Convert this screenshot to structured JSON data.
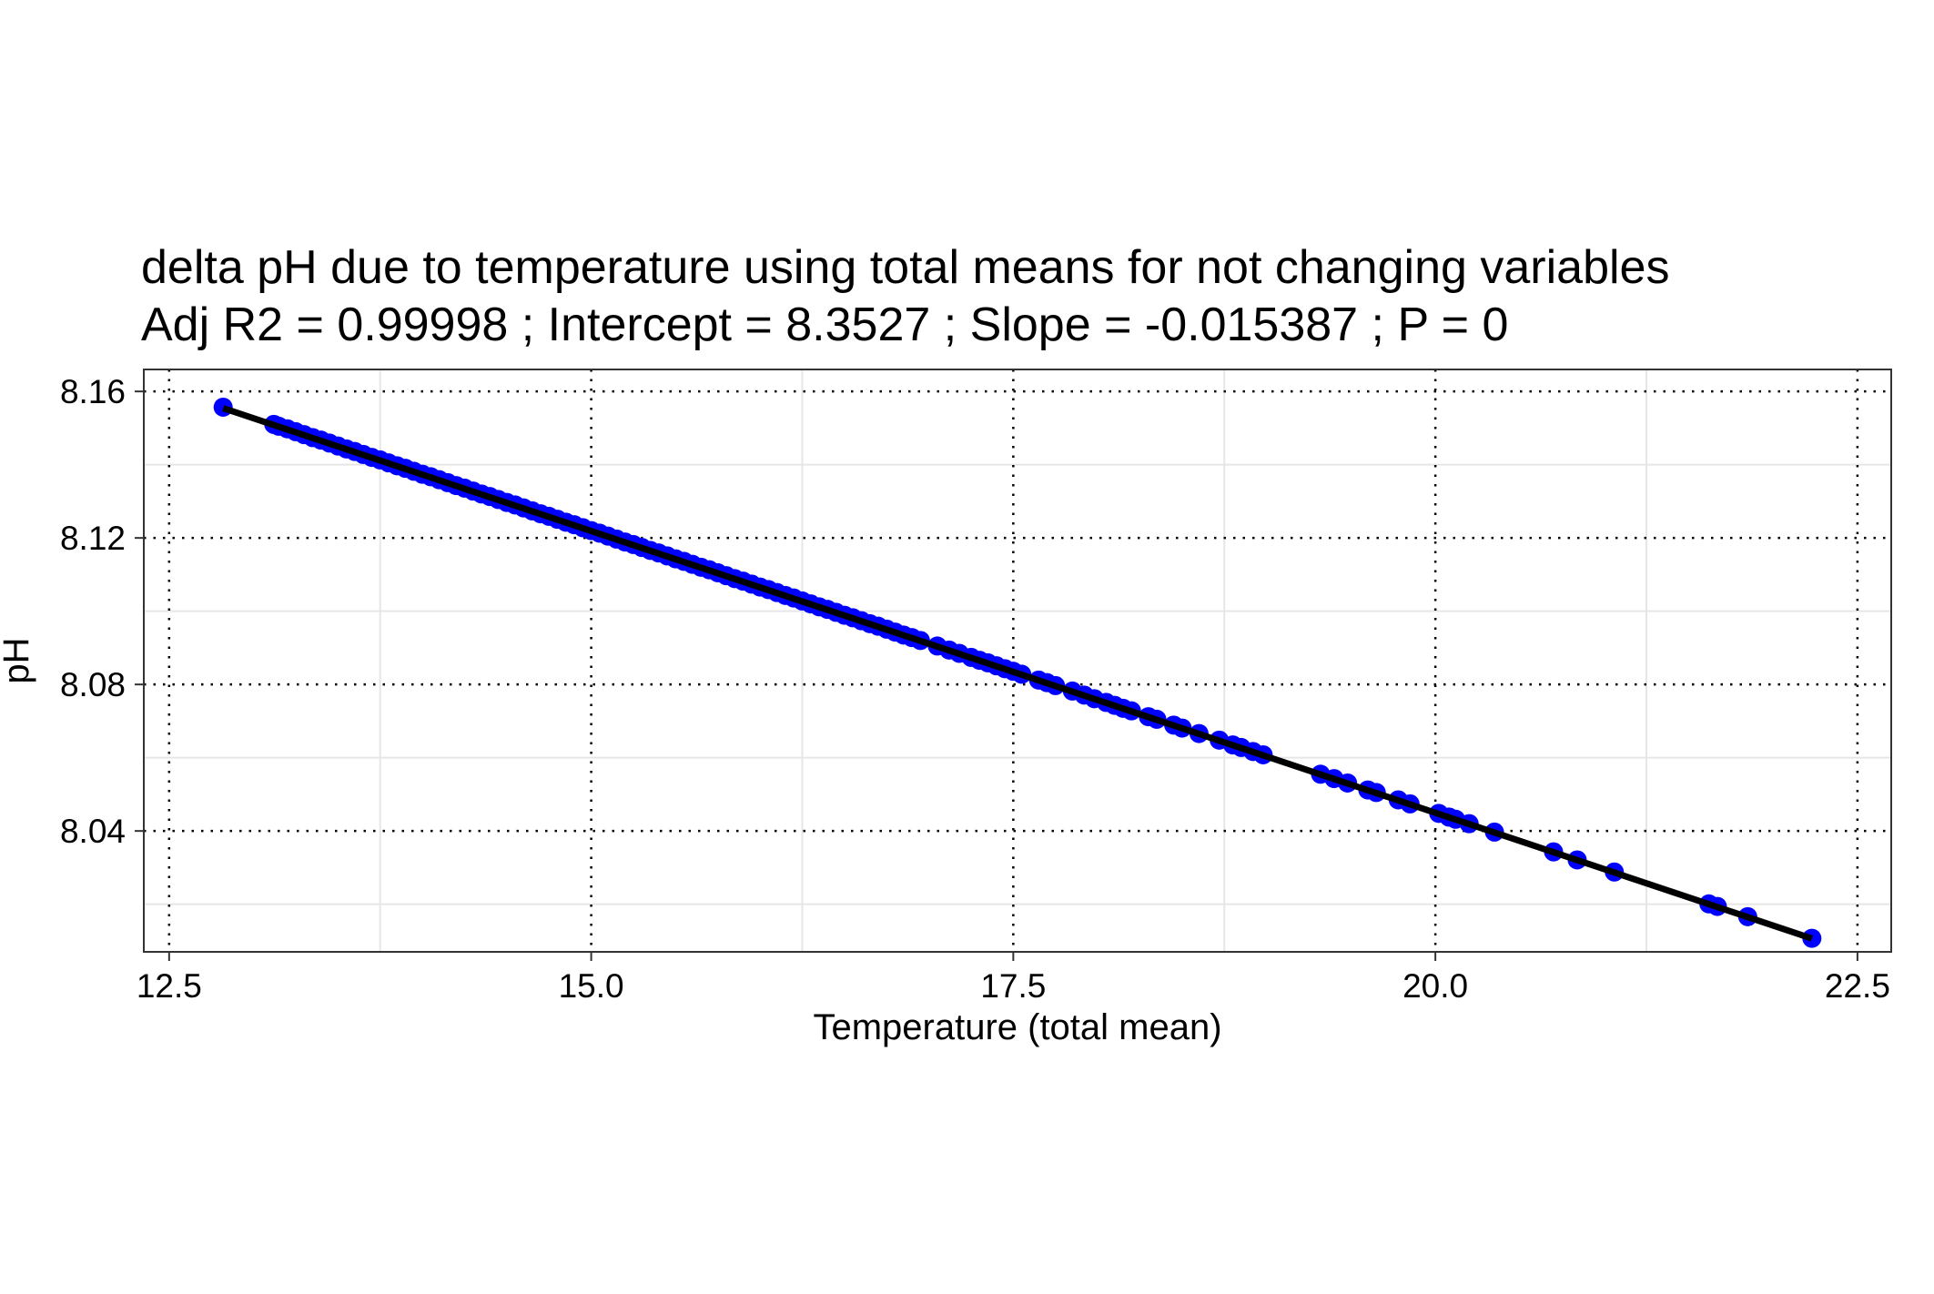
{
  "chart_data": {
    "type": "scatter",
    "title": "delta pH due to temperature using total means for not changing variables",
    "subtitle": "Adj R2 =  0.99998 ; Intercept = 8.3527 ; Slope = -0.015387 ; P = 0",
    "xlabel": "Temperature (total mean)",
    "ylabel": "pH",
    "xlim": [
      12.35,
      22.7
    ],
    "ylim": [
      8.007,
      8.166
    ],
    "xticks": [
      12.5,
      15.0,
      17.5,
      20.0,
      22.5
    ],
    "xtick_labels": [
      "12.5",
      "15.0",
      "17.5",
      "20.0",
      "22.5"
    ],
    "yticks": [
      8.04,
      8.08,
      8.12,
      8.16
    ],
    "ytick_labels": [
      "8.04",
      "8.08",
      "8.12",
      "8.16"
    ],
    "grid": true,
    "grid_style": "major dotted black, minor solid light gray",
    "legend": "none",
    "point_color": "#0000ff",
    "line_color": "#000000",
    "fit": {
      "intercept": 8.3527,
      "slope": -0.015387,
      "x_range": [
        12.82,
        22.23
      ]
    },
    "series": [
      {
        "x": [
          12.82,
          13.12,
          13.15,
          13.2,
          13.25,
          13.3,
          13.35,
          13.4,
          13.45,
          13.5,
          13.55,
          13.6,
          13.65,
          13.7,
          13.75,
          13.8,
          13.85,
          13.9,
          13.95,
          14.0,
          14.05,
          14.1,
          14.15,
          14.2,
          14.25,
          14.3,
          14.35,
          14.4,
          14.45,
          14.5,
          14.55,
          14.6,
          14.65,
          14.7,
          14.75,
          14.8,
          14.85,
          14.9,
          14.95,
          15.0,
          15.05,
          15.1,
          15.15,
          15.2,
          15.25,
          15.3,
          15.35,
          15.4,
          15.45,
          15.5,
          15.55,
          15.6,
          15.65,
          15.7,
          15.75,
          15.8,
          15.85,
          15.9,
          15.95,
          16.0,
          16.05,
          16.1,
          16.15,
          16.2,
          16.25,
          16.3,
          16.35,
          16.4,
          16.45,
          16.5,
          16.55,
          16.6,
          16.65,
          16.7,
          16.75,
          16.8,
          16.85,
          16.9,
          16.95,
          17.05,
          17.12,
          17.18,
          17.25,
          17.3,
          17.35,
          17.4,
          17.45,
          17.5,
          17.55,
          17.65,
          17.7,
          17.75,
          17.85,
          17.92,
          17.98,
          18.05,
          18.1,
          18.15,
          18.2,
          18.3,
          18.35,
          18.45,
          18.5,
          18.6,
          18.72,
          18.8,
          18.85,
          18.92,
          18.98,
          19.32,
          19.4,
          19.48,
          19.6,
          19.65,
          19.78,
          19.85,
          20.02,
          20.08,
          20.12,
          20.2,
          20.35,
          20.7,
          20.84,
          21.06,
          21.62,
          21.67,
          21.85,
          22.23
        ],
        "y": [
          8.1557,
          8.151,
          8.1505,
          8.1498,
          8.149,
          8.1482,
          8.1474,
          8.1467,
          8.1459,
          8.1451,
          8.1443,
          8.1436,
          8.1428,
          8.142,
          8.1413,
          8.1405,
          8.1397,
          8.139,
          8.1382,
          8.1374,
          8.1367,
          8.1359,
          8.1351,
          8.1343,
          8.1336,
          8.1328,
          8.132,
          8.1313,
          8.1305,
          8.1297,
          8.129,
          8.1282,
          8.1274,
          8.1266,
          8.1259,
          8.1251,
          8.1243,
          8.1236,
          8.1228,
          8.122,
          8.1213,
          8.1205,
          8.1197,
          8.1189,
          8.1182,
          8.1174,
          8.1166,
          8.1159,
          8.1151,
          8.1143,
          8.1136,
          8.1128,
          8.112,
          8.1113,
          8.1105,
          8.1097,
          8.1089,
          8.1082,
          8.1074,
          8.1066,
          8.1059,
          8.1051,
          8.1043,
          8.1036,
          8.1028,
          8.102,
          8.1012,
          8.1005,
          8.0997,
          8.0989,
          8.0982,
          8.0974,
          8.0966,
          8.0959,
          8.0951,
          8.0943,
          8.0935,
          8.0928,
          8.092,
          8.0905,
          8.0894,
          8.0885,
          8.0874,
          8.0866,
          8.0859,
          8.0851,
          8.0843,
          8.0836,
          8.0828,
          8.0812,
          8.0805,
          8.0797,
          8.0782,
          8.0771,
          8.0761,
          8.0751,
          8.0743,
          8.0735,
          8.0728,
          8.0712,
          8.0705,
          8.0689,
          8.0681,
          8.0666,
          8.0648,
          8.0635,
          8.0628,
          8.0617,
          8.0608,
          8.0555,
          8.0543,
          8.0531,
          8.0512,
          8.0505,
          8.0485,
          8.0474,
          8.0448,
          8.0438,
          8.0432,
          8.042,
          8.0397,
          8.0343,
          8.0321,
          8.0288,
          8.0201,
          8.0194,
          8.0166,
          8.0107
        ]
      }
    ]
  }
}
